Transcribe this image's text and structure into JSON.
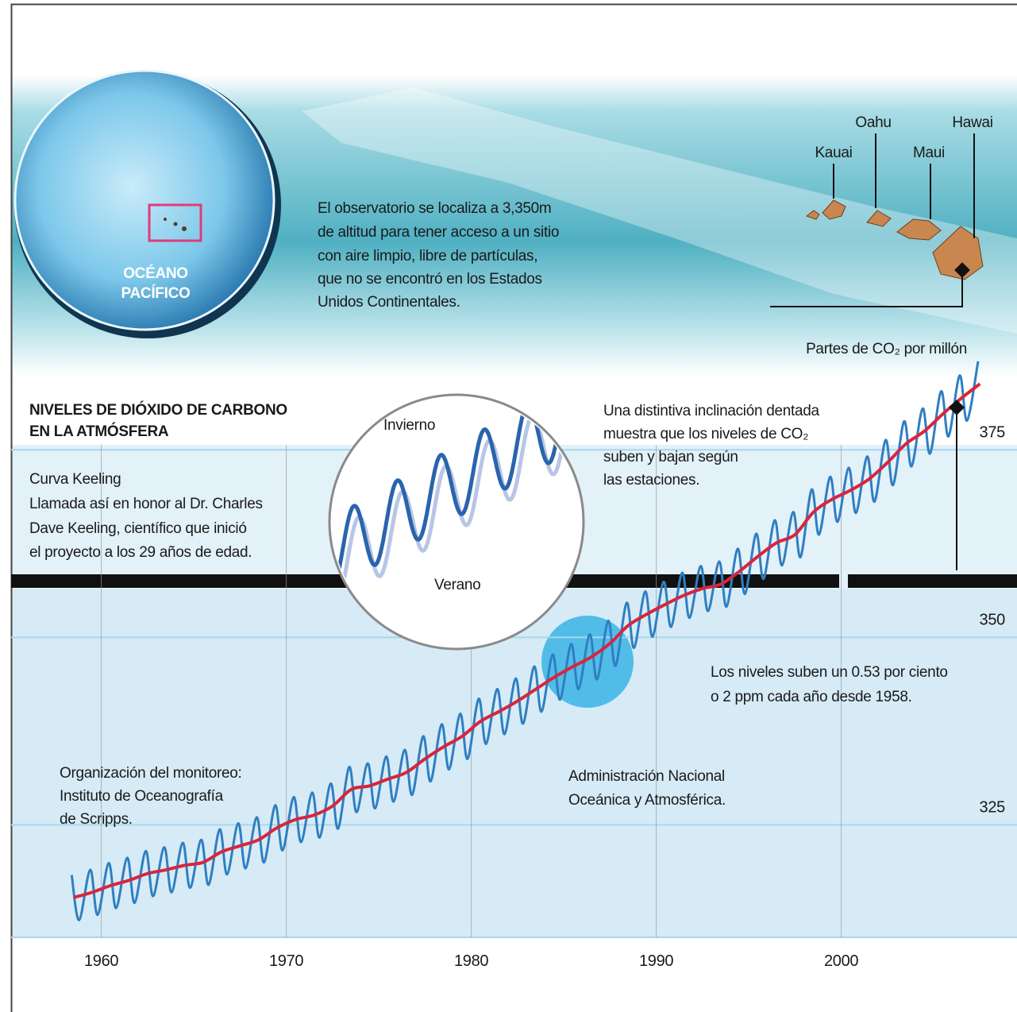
{
  "map": {
    "ocean_lines": [
      "OCÉANO",
      "PACÍFICO"
    ],
    "islands": [
      "Kauai",
      "Oahu",
      "Maui",
      "Hawai"
    ],
    "note_lines": [
      "El observatorio se localiza a 3,350m",
      "de altitud para tener acceso a un sitio",
      "con aire limpio, libre de partículas,",
      "que no se encontró en los Estados",
      "Unidos Continentales."
    ]
  },
  "chart_data": {
    "type": "line",
    "title_lines": [
      "NIVELES DE DIÓXIDO DE CARBONO",
      "EN LA ATMÓSFERA"
    ],
    "y_label": "Partes de CO₂ por millón",
    "inset_labels": [
      "Invierno",
      "Verano"
    ],
    "annotations": [
      {
        "lines": [
          "Curva Keeling",
          "Llamada así en honor al Dr. Charles",
          "Dave Keeling, científico que inició",
          "el proyecto a los 29 años de edad."
        ]
      },
      {
        "lines": [
          "Una distintiva inclinación dentada",
          "muestra que los niveles de CO₂",
          "suben y bajan según",
          "las estaciones."
        ]
      },
      {
        "lines": [
          "Los niveles suben un 0.53 por ciento",
          "o 2 ppm cada año desde 1958."
        ]
      },
      {
        "lines": [
          "Organización del monitoreo:",
          "Instituto de Oceanografía",
          "de Scripps."
        ]
      },
      {
        "lines": [
          "Administración Nacional",
          "Oceánica y Atmosférica."
        ]
      }
    ],
    "xlim": [
      1958,
      2008
    ],
    "xticks": [
      1960,
      1970,
      1980,
      1990,
      2000
    ],
    "ylim": [
      310,
      387
    ],
    "yticks": [
      325,
      350,
      375
    ],
    "grid": true,
    "series": [
      {
        "color": "#2f7fc1",
        "x": [
          1958.4,
          1958.8,
          1959.4,
          1959.8,
          1960.4,
          1960.8,
          1961.4,
          1961.8,
          1962.4,
          1962.8,
          1963.4,
          1963.8,
          1964.4,
          1964.8,
          1965.4,
          1965.8,
          1966.4,
          1966.8,
          1967.4,
          1967.8,
          1968.4,
          1968.8,
          1969.4,
          1969.8,
          1970.4,
          1970.8,
          1971.4,
          1971.8,
          1972.4,
          1972.8,
          1973.4,
          1973.8,
          1974.4,
          1974.8,
          1975.4,
          1975.8,
          1976.4,
          1976.8,
          1977.4,
          1977.8,
          1978.4,
          1978.8,
          1979.4,
          1979.8,
          1980.4,
          1980.8,
          1981.4,
          1981.8,
          1982.4,
          1982.8,
          1983.4,
          1983.8,
          1984.4,
          1984.8,
          1985.4,
          1985.8,
          1986.4,
          1986.8,
          1987.4,
          1987.8,
          1988.4,
          1988.8,
          1989.4,
          1989.8,
          1990.4,
          1990.8,
          1991.4,
          1991.8,
          1992.4,
          1992.8,
          1993.4,
          1993.8,
          1994.4,
          1994.8,
          1995.4,
          1995.8,
          1996.4,
          1996.8,
          1997.4,
          1997.8,
          1998.4,
          1998.8,
          1999.4,
          1999.8,
          2000.4,
          2000.8,
          2001.4,
          2001.8,
          2002.4,
          2002.8,
          2003.4,
          2003.8,
          2004.4,
          2004.8,
          2005.4,
          2005.8,
          2006.4,
          2006.8,
          2007.4
        ],
        "values": [
          318.3,
          312.3,
          319.0,
          313.0,
          319.9,
          313.9,
          320.6,
          314.6,
          321.5,
          315.5,
          322.0,
          316.0,
          322.6,
          316.6,
          323.0,
          317.0,
          324.4,
          318.4,
          325.2,
          319.2,
          326.0,
          320.0,
          327.6,
          321.6,
          328.7,
          322.7,
          329.3,
          323.3,
          330.5,
          324.5,
          332.7,
          326.7,
          333.2,
          327.2,
          334.1,
          328.1,
          335.0,
          329.0,
          336.8,
          330.8,
          338.4,
          332.4,
          339.8,
          333.8,
          341.8,
          335.8,
          343.1,
          337.1,
          344.5,
          338.5,
          346.1,
          340.1,
          347.7,
          341.7,
          349.1,
          343.1,
          350.4,
          344.4,
          352.2,
          346.2,
          354.6,
          348.6,
          356.1,
          350.1,
          357.4,
          351.4,
          358.6,
          352.6,
          359.5,
          353.5,
          360.1,
          354.1,
          361.8,
          355.8,
          363.8,
          357.8,
          365.6,
          359.6,
          366.7,
          360.7,
          369.7,
          363.7,
          371.4,
          365.4,
          372.6,
          366.6,
          374.1,
          368.1,
          376.3,
          370.3,
          378.8,
          372.8,
          380.5,
          374.5,
          382.8,
          376.8,
          384.9,
          378.9,
          386.8
        ]
      },
      {
        "color": "#d7263d",
        "x": [
          1958.5,
          1959.5,
          1960.5,
          1961.5,
          1962.5,
          1963.5,
          1964.5,
          1965.5,
          1966.5,
          1967.5,
          1968.5,
          1969.5,
          1970.5,
          1971.5,
          1972.5,
          1973.5,
          1974.5,
          1975.5,
          1976.5,
          1977.5,
          1978.5,
          1979.5,
          1980.5,
          1981.5,
          1982.5,
          1983.5,
          1984.5,
          1985.5,
          1986.5,
          1987.5,
          1988.5,
          1989.5,
          1990.5,
          1991.5,
          1992.5,
          1993.5,
          1994.5,
          1995.5,
          1996.5,
          1997.5,
          1998.5,
          1999.5,
          2000.5,
          2001.5,
          2002.5,
          2003.5,
          2004.5,
          2005.5,
          2006.5,
          2007.5
        ],
        "values": [
          315.3,
          316.0,
          316.9,
          317.6,
          318.5,
          319.0,
          319.6,
          320.0,
          321.4,
          322.2,
          323.0,
          324.6,
          325.7,
          326.3,
          327.5,
          329.7,
          330.2,
          331.1,
          332.0,
          333.8,
          335.4,
          336.8,
          338.8,
          340.1,
          341.5,
          343.1,
          344.7,
          346.1,
          347.4,
          349.2,
          351.6,
          353.1,
          354.4,
          355.6,
          356.5,
          357.1,
          358.8,
          360.8,
          362.6,
          363.7,
          366.7,
          368.4,
          369.6,
          371.1,
          373.3,
          375.8,
          377.5,
          379.8,
          381.9,
          383.8
        ]
      }
    ]
  }
}
